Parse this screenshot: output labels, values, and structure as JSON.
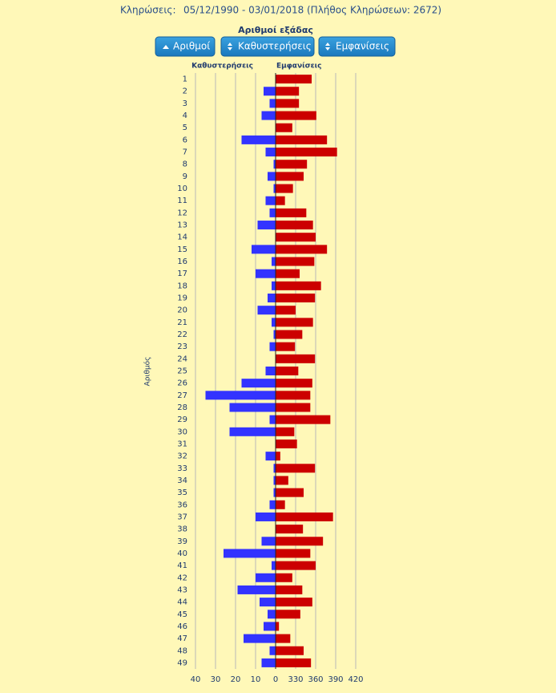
{
  "header": {
    "label": "Κληρώσεις:",
    "range": "05/12/1990 - 03/01/2018",
    "count": "(Πλήθος Κληρώσεων: 2672)"
  },
  "title": "Αριθμοί εξάδας",
  "buttons": [
    "Αριθμοί",
    "Καθυστερήσεις",
    "Εμφανίσεις"
  ],
  "chart_data": {
    "type": "bar",
    "orientation": "horizontal",
    "ylabel": "Αριθμός",
    "categories": [
      "1",
      "2",
      "3",
      "4",
      "5",
      "6",
      "7",
      "8",
      "9",
      "10",
      "11",
      "12",
      "13",
      "14",
      "15",
      "16",
      "17",
      "18",
      "19",
      "20",
      "21",
      "22",
      "23",
      "24",
      "25",
      "26",
      "27",
      "28",
      "29",
      "30",
      "31",
      "32",
      "33",
      "34",
      "35",
      "36",
      "37",
      "38",
      "39",
      "40",
      "41",
      "42",
      "43",
      "44",
      "45",
      "46",
      "47",
      "48",
      "49"
    ],
    "series": [
      {
        "name": "Καθυστερήσεις",
        "color": "#3333ff",
        "axis": "x",
        "values": [
          0,
          6,
          3,
          7,
          0,
          17,
          5,
          1,
          4,
          1,
          5,
          3,
          9,
          0,
          12,
          2,
          10,
          2,
          4,
          9,
          2,
          1,
          3,
          0,
          5,
          17,
          35,
          23,
          3,
          23,
          0,
          5,
          1,
          1,
          1,
          3,
          10,
          0,
          7,
          26,
          2,
          10,
          19,
          8,
          4,
          6,
          16,
          3,
          7
        ]
      },
      {
        "name": "Εμφανίσεις",
        "color": "#cc0000",
        "axis": "x2",
        "values": [
          354,
          335,
          335,
          361,
          325,
          377,
          392,
          347,
          342,
          326,
          314,
          346,
          356,
          360,
          377,
          358,
          336,
          368,
          359,
          330,
          356,
          340,
          329,
          359,
          334,
          355,
          352,
          352,
          382,
          328,
          332,
          307,
          359,
          319,
          342,
          314,
          386,
          341,
          371,
          352,
          360,
          325,
          340,
          355,
          337,
          305,
          322,
          342,
          353
        ]
      }
    ],
    "xlim": [
      0,
      44
    ],
    "xticks": [
      40,
      30,
      20,
      10,
      0
    ],
    "x2lim": [
      300,
      450
    ],
    "x2ticks": [
      330,
      360,
      390,
      420
    ],
    "grid": true
  }
}
